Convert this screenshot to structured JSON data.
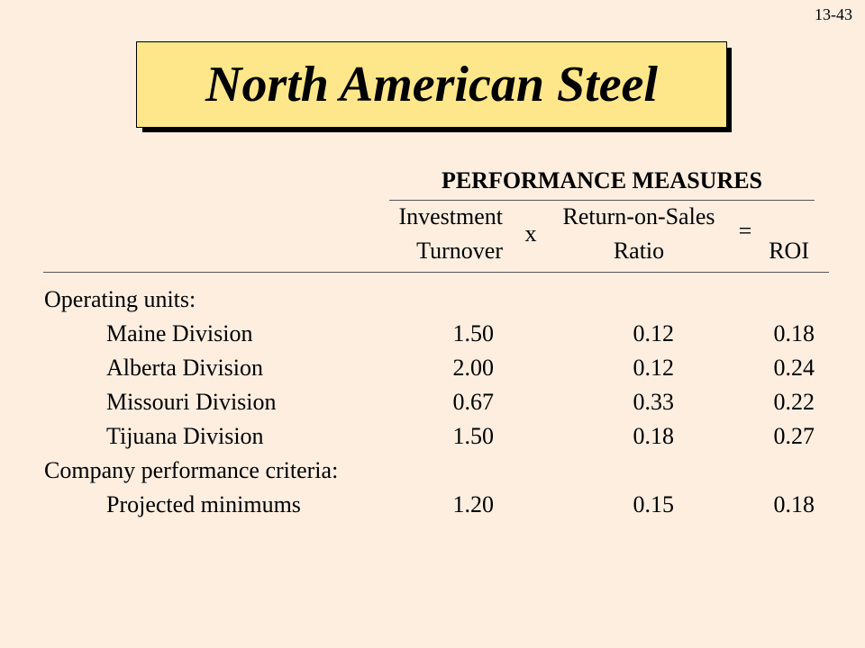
{
  "slide_number": "13-43",
  "title": "North American Steel",
  "header": {
    "main": "PERFORMANCE MEASURES",
    "col1_line1": "Investment",
    "col1_line2": "Turnover",
    "operator1": "x",
    "col2_line1": "Return-on-Sales",
    "col2_line2": "Ratio",
    "operator2": "=",
    "col3": "ROI"
  },
  "sections": [
    {
      "label": "Operating units:",
      "rows": [
        {
          "name": "Maine Division",
          "turnover": "1.50",
          "ros": "0.12",
          "roi": "0.18"
        },
        {
          "name": "Alberta Division",
          "turnover": "2.00",
          "ros": "0.12",
          "roi": "0.24"
        },
        {
          "name": "Missouri Division",
          "turnover": "0.67",
          "ros": "0.33",
          "roi": "0.22"
        },
        {
          "name": "Tijuana Division",
          "turnover": "1.50",
          "ros": "0.18",
          "roi": "0.27"
        }
      ]
    },
    {
      "label": "Company performance criteria:",
      "rows": [
        {
          "name": "Projected minimums",
          "turnover": "1.20",
          "ros": "0.15",
          "roi": "0.18"
        }
      ]
    }
  ]
}
